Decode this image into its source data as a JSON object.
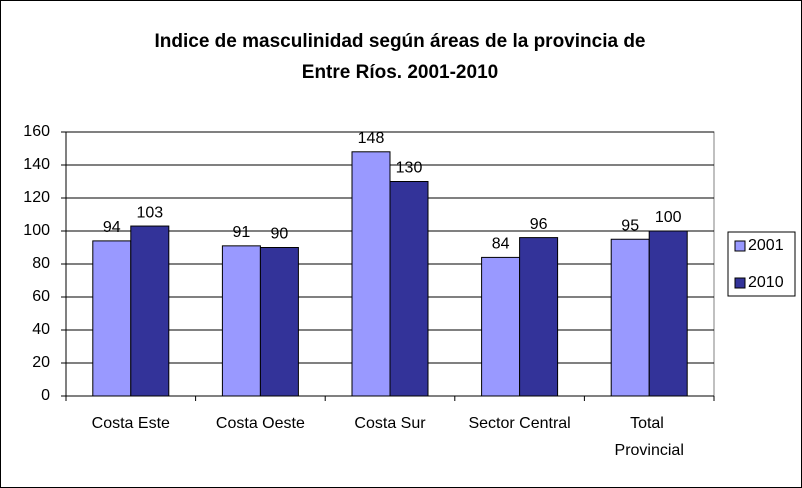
{
  "chart_data": {
    "type": "bar",
    "title": [
      "Indice de masculinidad según áreas de la provincia de",
      "Entre Ríos. 2001-2010"
    ],
    "categories": [
      "Costa Este",
      "Costa Oeste",
      "Costa Sur",
      "Sector Central",
      "Total Provincial"
    ],
    "series": [
      {
        "name": "2001",
        "color": "#9999ff",
        "values": [
          94,
          91,
          148,
          84,
          95
        ]
      },
      {
        "name": "2010",
        "color": "#333399",
        "values": [
          103,
          90,
          130,
          96,
          100
        ]
      }
    ],
    "ylim": [
      0,
      160
    ],
    "yticks": [
      0,
      20,
      40,
      60,
      80,
      100,
      120,
      140,
      160
    ],
    "grid": true,
    "legend": "right"
  }
}
